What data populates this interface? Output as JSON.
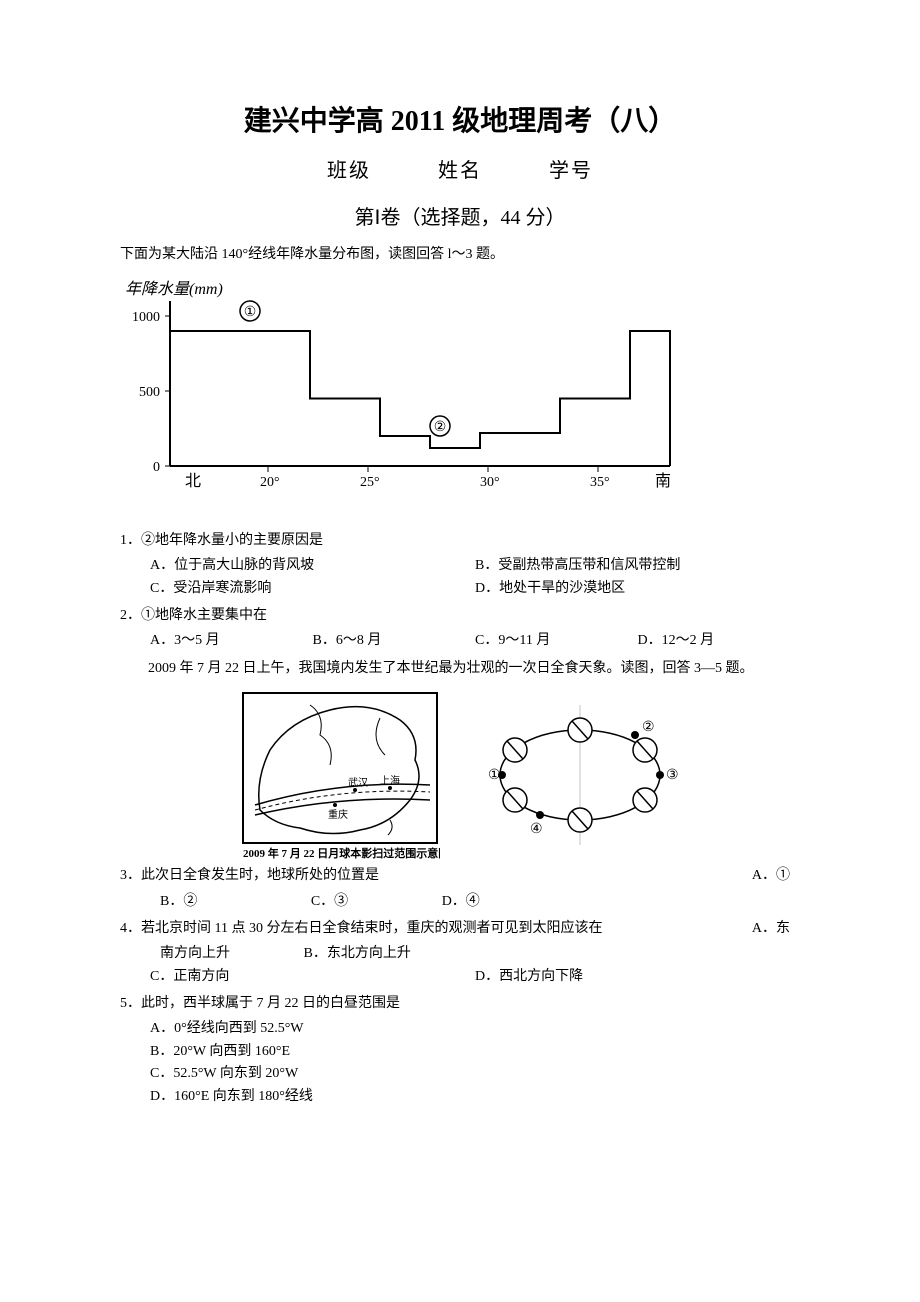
{
  "title": "建兴中学高 2011 级地理周考（八）",
  "subtitle": {
    "class_label": "班级",
    "name_label": "姓名",
    "id_label": "学号"
  },
  "section": "第Ⅰ卷（选择题，44 分）",
  "intro1": "下面为某大陆沿 140°经线年降水量分布图，读图回答 l～3 题。",
  "chart": {
    "y_label": "年降水量(mm)",
    "y_ticks": [
      "0",
      "500",
      "1000"
    ],
    "x_left": "北",
    "x_right": "南",
    "x_ticks": [
      "20°",
      "25°",
      "30°",
      "35°"
    ],
    "markers": {
      "one": "①",
      "two": "②"
    },
    "y_max": 1100,
    "step_values": [
      {
        "from": 0,
        "to": 0.08,
        "val": 900
      },
      {
        "from": 0.08,
        "to": 0.28,
        "val": 900
      },
      {
        "from": 0.28,
        "to": 0.42,
        "val": 450
      },
      {
        "from": 0.42,
        "to": 0.52,
        "val": 200
      },
      {
        "from": 0.52,
        "to": 0.62,
        "val": 120
      },
      {
        "from": 0.62,
        "to": 0.78,
        "val": 220
      },
      {
        "from": 0.78,
        "to": 0.92,
        "val": 450
      },
      {
        "from": 0.92,
        "to": 1.0,
        "val": 900
      }
    ]
  },
  "q1": {
    "text": "1．②地年降水量小的主要原因是",
    "a": "A．位于高大山脉的背风坡",
    "b": "B．受副热带高压带和信风带控制",
    "c": "C．受沿岸寒流影响",
    "d": "D．地处干旱的沙漠地区"
  },
  "q2": {
    "text": "2．①地降水主要集中在",
    "a": "A．3～5 月",
    "b": "B．6～8 月",
    "c": "C．9～11 月",
    "d": "D．12～2 月"
  },
  "intro2": "2009 年 7 月 22 日上午，我国境内发生了本世纪最为壮观的一次日全食天象。读图，回答 3—5 题。",
  "figure_caption": "2009 年 7 月 22 日月球本影扫过范围示意图",
  "map_labels": {
    "wuhan": "武汉",
    "shanghai": "上海",
    "chongqing": "重庆"
  },
  "orbit_labels": {
    "one": "①",
    "two": "②",
    "three": "③",
    "four": "④"
  },
  "q3": {
    "text": "3．此次日全食发生时，地球所处的位置是",
    "a": "A．①",
    "b": "B．②",
    "c": "C．③",
    "d": "D．④"
  },
  "q4": {
    "text": "4．若北京时间 11 点 30 分左右日全食结束时，重庆的观测者可见到太阳应该在",
    "a": "A．东南方向上升",
    "b": "B．东北方向上升",
    "c": "C．正南方向",
    "d": "D．西北方向下降"
  },
  "q5": {
    "text": "5．此时，西半球属于 7 月 22 日的白昼范围是",
    "a": "A．0°经线向西到 52.5°W",
    "b": "B．20°W 向西到 160°E",
    "c": "C．52.5°W 向东到 20°W",
    "d": "D．160°E 向东到 180°经线"
  }
}
